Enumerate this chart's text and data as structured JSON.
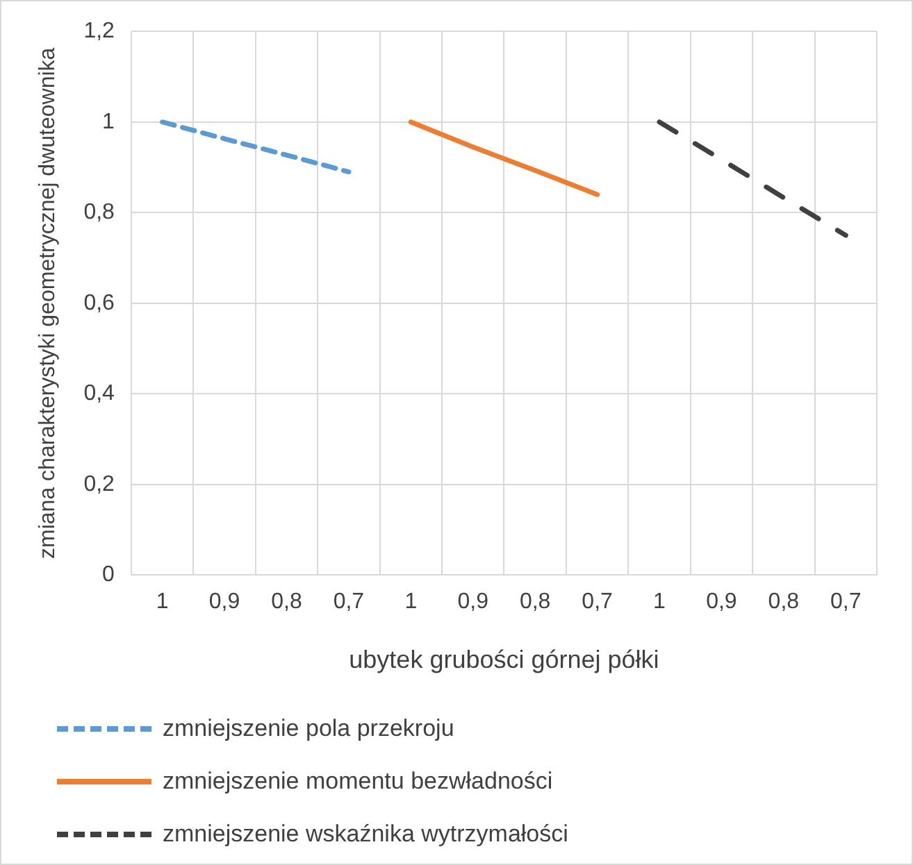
{
  "chart_data": {
    "type": "line",
    "xlabel": "ubytek grubości górnej półki",
    "ylabel": "zmiana charakterystyki geometrycznej dwuteownika",
    "categories": [
      "1",
      "0,9",
      "0,8",
      "0,7",
      "1",
      "0,9",
      "0,8",
      "0,7",
      "1",
      "0,9",
      "0,8",
      "0,7"
    ],
    "series": [
      {
        "name": "zmniejszenie pola przekroju",
        "color": "#5b9bd5",
        "line_style": "dashed",
        "values": [
          1,
          0.963,
          0.927,
          0.89,
          null,
          null,
          null,
          null,
          null,
          null,
          null,
          null
        ]
      },
      {
        "name": "zmniejszenie momentu bezwładności",
        "color": "#ed7d31",
        "line_style": "solid",
        "values": [
          null,
          null,
          null,
          null,
          1,
          0.945,
          0.893,
          0.84,
          null,
          null,
          null,
          null
        ]
      },
      {
        "name": "zmniejszenie wskaźnika wytrzymałości",
        "color": "#404040",
        "line_style": "longdash",
        "values": [
          null,
          null,
          null,
          null,
          null,
          null,
          null,
          null,
          1,
          0.917,
          0.833,
          0.75
        ]
      }
    ],
    "ylim": [
      0,
      1.2
    ],
    "yticks": [
      0,
      {
        "value": 0.2,
        "label": "0,2"
      },
      {
        "value": 0.4,
        "label": "0,4"
      },
      {
        "value": 0.6,
        "label": "0,6"
      },
      {
        "value": 0.8,
        "label": "0,8"
      },
      1,
      {
        "value": 1.2,
        "label": "1,2"
      }
    ],
    "grid": true,
    "legend": "bottom",
    "marker": "none"
  }
}
